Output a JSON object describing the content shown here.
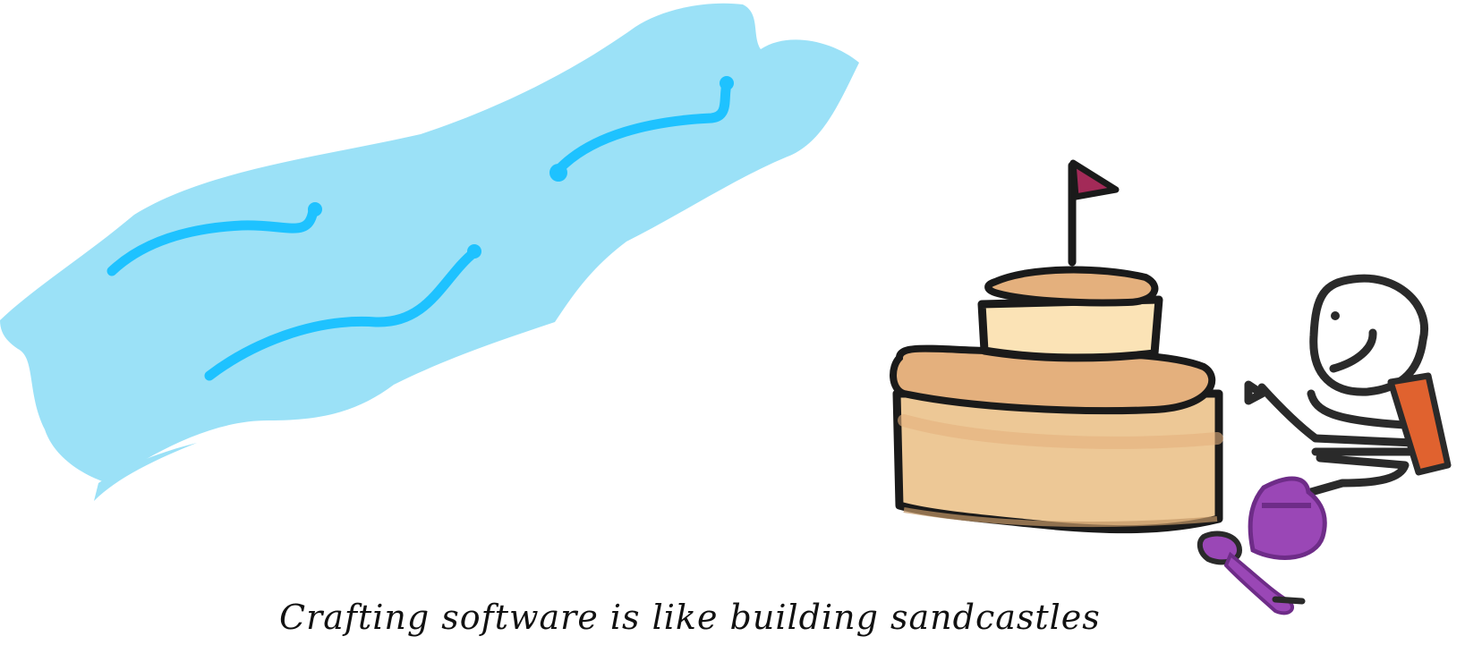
{
  "caption": {
    "text": "Crafting software is like building sandcastles"
  },
  "colors": {
    "water_fill": "#9be1f7",
    "water_waves": "#1ec2ff",
    "sand_light": "#fbe3b6",
    "sand_mid": "#edc896",
    "sand_dark": "#e4b07d",
    "outline": "#1a1a1a",
    "flag": "#a32a58",
    "shirt": "#e0622f",
    "bucket": "#9a47b6"
  },
  "icons": {
    "water": "water-drawing",
    "sandcastle": "sandcastle-drawing",
    "flag": "flag-icon",
    "person": "stick-figure-person",
    "bucket": "bucket-icon",
    "shovel": "shovel-icon"
  }
}
